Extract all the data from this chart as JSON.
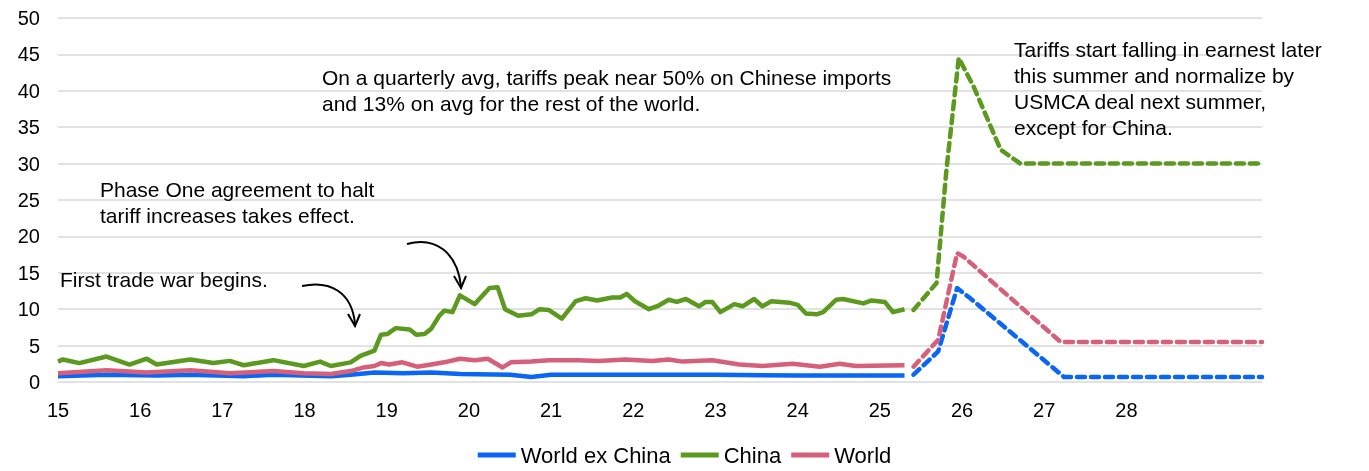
{
  "chart_data": {
    "type": "line",
    "xlim": [
      15,
      29.65
    ],
    "xticks": [
      15,
      16,
      17,
      18,
      19,
      20,
      21,
      22,
      23,
      24,
      25,
      26,
      27,
      28
    ],
    "ylim": [
      0,
      50
    ],
    "yticks": [
      0,
      5,
      10,
      15,
      20,
      25,
      30,
      35,
      40,
      45,
      50
    ],
    "grid": "y",
    "legend": "bottom",
    "marker": "none",
    "annotations": [
      "Tariffs start falling in earnest later this summer and normalize by USMCA deal next summer, except for China.",
      "On a quarterly avg, tariffs peak near 50% on Chinese imports and 13% on avg for the rest of the world.",
      "Phase One agreement to halt tariff increases takes effect.",
      "First trade war begins."
    ],
    "series": [
      {
        "name": "World ex China",
        "color": "#0a66f5",
        "line_style": "solid",
        "x": [
          15,
          15.59,
          16.2,
          16.61,
          17.26,
          17.62,
          18.32,
          18.56,
          18.85,
          19.2,
          19.54,
          19.9,
          20.5,
          20.76,
          21,
          22,
          23,
          24,
          25.3
        ],
        "values": [
          0.8,
          1,
          0.9,
          1,
          0.8,
          1,
          0.8,
          1,
          1.3,
          1.2,
          1.3,
          1.1,
          1,
          0.7,
          1,
          1,
          1,
          0.9,
          0.9
        ]
      },
      {
        "name": "China",
        "color": "#5b9a1f",
        "line_style": "solid",
        "x": [
          15,
          15.06,
          15.26,
          15.59,
          15.87,
          16.08,
          16.2,
          16.61,
          16.89,
          17.09,
          17.26,
          17.62,
          17.99,
          18.19,
          18.32,
          18.56,
          18.68,
          18.85,
          18.93,
          19.01,
          19.11,
          19.28,
          19.36,
          19.46,
          19.54,
          19.64,
          19.7,
          19.8,
          19.89,
          20.07,
          20.25,
          20.35,
          20.44,
          20.6,
          20.76,
          20.86,
          20.97,
          21.13,
          21.3,
          21.42,
          21.56,
          21.74,
          21.84,
          21.92,
          22.02,
          22.19,
          22.31,
          22.43,
          22.53,
          22.64,
          22.8,
          22.88,
          22.96,
          23.06,
          23.23,
          23.33,
          23.47,
          23.57,
          23.68,
          23.9,
          24,
          24.1,
          24.23,
          24.31,
          24.47,
          24.55,
          24.8,
          24.9,
          25.06,
          25.16,
          25.3
        ],
        "values": [
          2.8,
          3.1,
          2.6,
          3.5,
          2.4,
          3.2,
          2.4,
          3.1,
          2.6,
          2.9,
          2.3,
          3,
          2.2,
          2.8,
          2.2,
          2.7,
          3.6,
          4.3,
          6.5,
          6.6,
          7.4,
          7.2,
          6.5,
          6.6,
          7.3,
          9.1,
          9.8,
          9.6,
          11.9,
          10.7,
          12.9,
          13,
          10,
          9.1,
          9.3,
          10,
          9.9,
          8.7,
          11.1,
          11.5,
          11.2,
          11.6,
          11.6,
          12.1,
          11.1,
          10,
          10.5,
          11.3,
          11,
          11.4,
          10.4,
          11,
          11,
          9.6,
          10.7,
          10.4,
          11.4,
          10.4,
          11.1,
          10.9,
          10.6,
          9.4,
          9.3,
          9.6,
          11.3,
          11.4,
          10.8,
          11.2,
          11,
          9.6,
          10
        ]
      },
      {
        "name": "World",
        "color": "#d6607a",
        "line_style": "solid",
        "x": [
          15,
          15.59,
          16.08,
          16.61,
          17.09,
          17.62,
          17.99,
          18.32,
          18.56,
          18.72,
          18.85,
          18.93,
          19.03,
          19.19,
          19.37,
          19.54,
          19.7,
          19.89,
          20.07,
          20.23,
          20.41,
          20.51,
          20.76,
          20.97,
          21.33,
          21.58,
          21.9,
          22.23,
          22.43,
          22.6,
          22.96,
          23.29,
          23.57,
          23.94,
          24.27,
          24.51,
          24.71,
          25.3
        ],
        "values": [
          1.2,
          1.6,
          1.3,
          1.6,
          1.2,
          1.5,
          1.2,
          1.1,
          1.5,
          2,
          2.2,
          2.6,
          2.4,
          2.7,
          2.1,
          2.4,
          2.7,
          3.2,
          3,
          3.2,
          2,
          2.7,
          2.8,
          3,
          3,
          2.9,
          3.1,
          2.9,
          3.1,
          2.8,
          3,
          2.4,
          2.2,
          2.5,
          2.1,
          2.5,
          2.2,
          2.3
        ]
      },
      {
        "color": "#0a66f5",
        "line_style": "dashed",
        "x": [
          25.41,
          25.71,
          25.94,
          26.1,
          27.24,
          29.65
        ],
        "values": [
          1,
          4.2,
          12.9,
          11.5,
          0.7,
          0.7
        ]
      },
      {
        "color": "#5b9a1f",
        "line_style": "dashed",
        "x": [
          25.41,
          25.69,
          25.81,
          25.96,
          26.14,
          26.47,
          26.71,
          29.65
        ],
        "values": [
          9.9,
          13.6,
          29.1,
          44.5,
          40.6,
          31.9,
          30,
          30
        ]
      },
      {
        "color": "#d6607a",
        "line_style": "dashed",
        "x": [
          25.41,
          25.71,
          25.94,
          26.02,
          27.2,
          29.65
        ],
        "values": [
          2.1,
          5.8,
          17.7,
          17.2,
          5.5,
          5.5
        ]
      }
    ]
  }
}
